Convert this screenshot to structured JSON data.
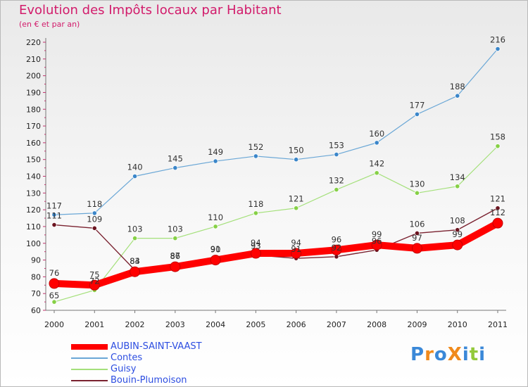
{
  "header": {
    "title": "Evolution des Impôts locaux par Habitant",
    "subtitle": "(en € et par an)"
  },
  "chart_data": {
    "type": "line",
    "title": "Evolution des Impôts locaux par Habitant",
    "subtitle": "(en € et par an)",
    "xlabel": "",
    "ylabel": "",
    "categories": [
      "2000",
      "2001",
      "2002",
      "2003",
      "2004",
      "2005",
      "2006",
      "2007",
      "2008",
      "2009",
      "2010",
      "2011"
    ],
    "ylim": [
      60,
      220
    ],
    "yticks": [
      60,
      70,
      80,
      90,
      100,
      110,
      120,
      130,
      140,
      150,
      160,
      170,
      180,
      190,
      200,
      210,
      220
    ],
    "grid": false,
    "legend_position": "bottom-left",
    "series": [
      {
        "name": "AUBIN-SAINT-VAAST",
        "color": "#ff0000",
        "marker_color": "#e00000",
        "values": [
          76,
          75,
          83,
          86,
          90,
          94,
          94,
          96,
          99,
          97,
          99,
          112
        ]
      },
      {
        "name": "Contes",
        "color": "#6aa7d6",
        "marker_color": "#3b86c9",
        "values": [
          117,
          118,
          140,
          145,
          149,
          152,
          150,
          153,
          160,
          177,
          188,
          216
        ]
      },
      {
        "name": "Guisy",
        "color": "#a4e07a",
        "marker_color": "#86d046",
        "values": [
          65,
          72,
          103,
          103,
          110,
          118,
          121,
          132,
          142,
          130,
          134,
          158
        ]
      },
      {
        "name": "Bouin-Plumoison",
        "color": "#7a2230",
        "marker_color": "#6b1420",
        "values": [
          111,
          109,
          84,
          87,
          91,
          93,
          91,
          92,
          96,
          106,
          108,
          121
        ]
      }
    ]
  },
  "logo": {
    "text": "ProXiti",
    "colors": [
      "#3a88d8",
      "#f08a1c",
      "#3a88d8",
      "#f08a1c",
      "#3a88d8",
      "#93c93a",
      "#3a88d8"
    ]
  }
}
